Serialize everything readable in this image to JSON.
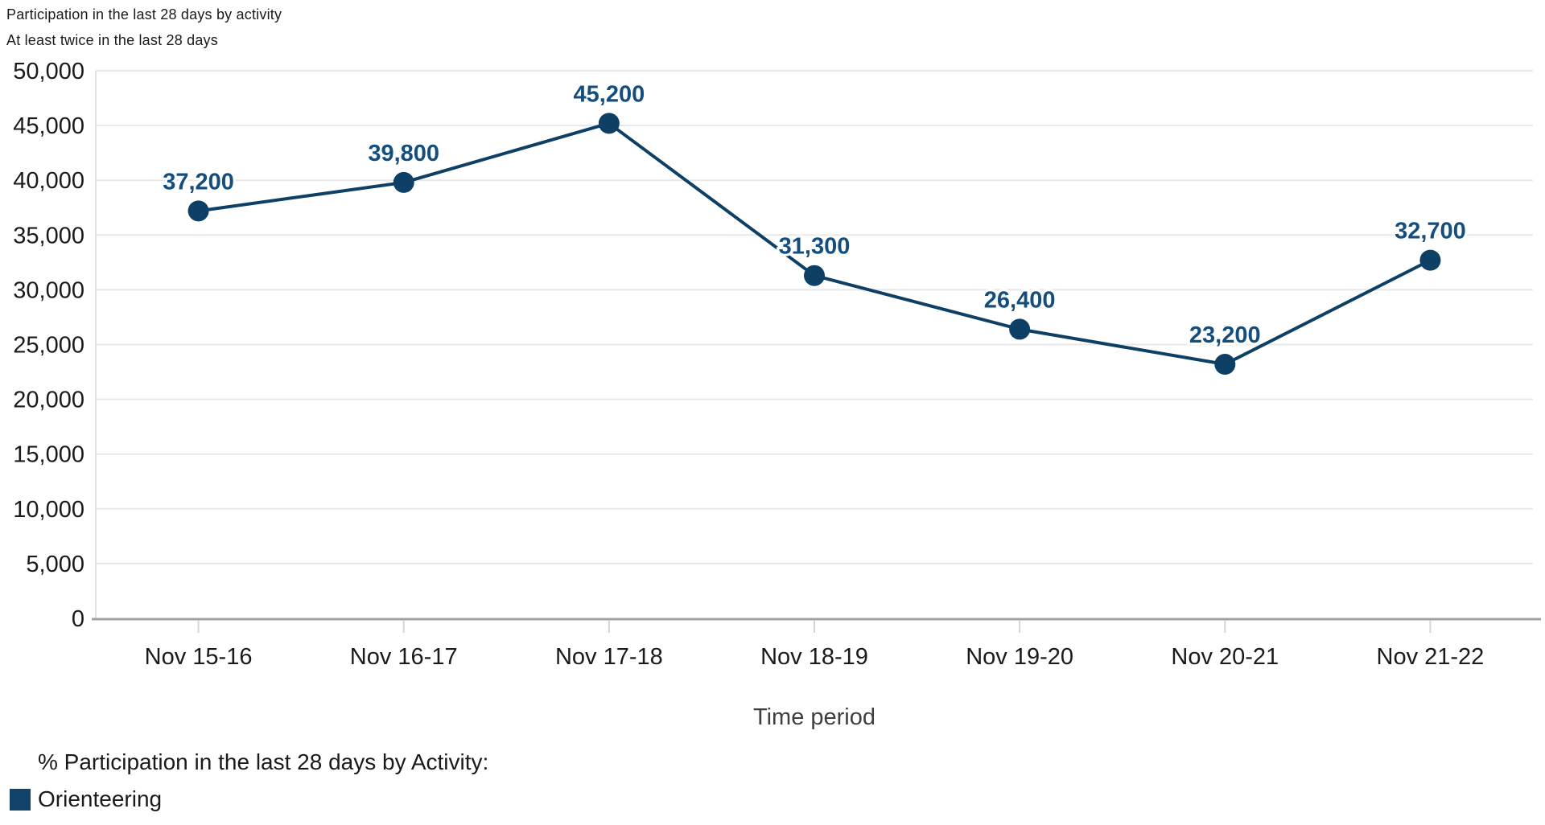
{
  "header": {
    "title": "Participation in the last 28 days by activity",
    "subtitle": "At least twice in the last 28 days"
  },
  "chart_data": {
    "type": "line",
    "title": "Participation in the last 28 days by activity",
    "subtitle": "At least twice in the last 28 days",
    "categories": [
      "Nov 15-16",
      "Nov 16-17",
      "Nov 17-18",
      "Nov 18-19",
      "Nov 19-20",
      "Nov 20-21",
      "Nov 21-22"
    ],
    "series": [
      {
        "name": "Orienteering",
        "values": [
          37200,
          39800,
          45200,
          31300,
          26400,
          23200,
          32700
        ],
        "data_labels": [
          "37,200",
          "39,800",
          "45,200",
          "31,300",
          "26,400",
          "23,200",
          "32,700"
        ]
      }
    ],
    "xlabel": "Time period",
    "ylabel": "",
    "ylim": [
      0,
      50000
    ],
    "ytick_step": 5000,
    "ytick_labels": [
      "0",
      "5,000",
      "10,000",
      "15,000",
      "20,000",
      "25,000",
      "30,000",
      "35,000",
      "40,000",
      "45,000",
      "50,000"
    ],
    "grid": "horizontal",
    "data_labels_shown": true,
    "legend_position": "bottom-left"
  },
  "legend": {
    "title": "% Participation in the last 28 days by Activity:",
    "items": [
      {
        "label": "Orienteering",
        "color": "#11436b"
      }
    ]
  },
  "colors": {
    "series_line": "#0e3f64",
    "marker": "#0e3f64",
    "data_label": "#134e7e",
    "grid_line": "#e8e8e8",
    "axis_baseline": "#a2a2a2",
    "axis_side_line": "#e0e0e0",
    "tick_mark": "#d5d5d5",
    "axis_text": "#1a1a1a",
    "x_axis_title_text": "#3c4043"
  }
}
